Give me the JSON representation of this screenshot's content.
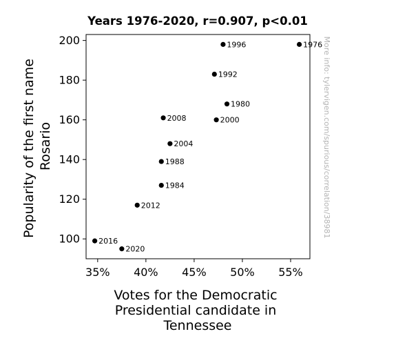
{
  "chart_data": {
    "type": "scatter",
    "title": "Years 1976-2020, r=0.907, p<0.01",
    "xlabel_lines": [
      "Votes for the Democratic",
      "Presidential candidate in",
      "Tennessee"
    ],
    "ylabel_lines": [
      "Popularity of the first name",
      "Rosario"
    ],
    "xlim": [
      33.8,
      57.0
    ],
    "ylim": [
      90,
      203
    ],
    "x_unit": "%",
    "x_ticks": [
      35,
      40,
      45,
      50,
      55
    ],
    "x_tick_labels": [
      "35%",
      "40%",
      "45%",
      "50%",
      "55%"
    ],
    "y_ticks": [
      100,
      120,
      140,
      160,
      180,
      200
    ],
    "y_tick_labels": [
      "100",
      "120",
      "140",
      "160",
      "180",
      "200"
    ],
    "grid": false,
    "watermark": "More info: tylervigen.com/spurious/correlation/38981",
    "marker_color": "#000000",
    "points": [
      {
        "label": "1976",
        "x": 55.9,
        "y": 198
      },
      {
        "label": "1980",
        "x": 48.4,
        "y": 168
      },
      {
        "label": "1984",
        "x": 41.6,
        "y": 127
      },
      {
        "label": "1988",
        "x": 41.6,
        "y": 139
      },
      {
        "label": "1992",
        "x": 47.1,
        "y": 183
      },
      {
        "label": "1996",
        "x": 48.0,
        "y": 198
      },
      {
        "label": "2000",
        "x": 47.3,
        "y": 160
      },
      {
        "label": "2004",
        "x": 42.5,
        "y": 148
      },
      {
        "label": "2008",
        "x": 41.8,
        "y": 161
      },
      {
        "label": "2012",
        "x": 39.1,
        "y": 117
      },
      {
        "label": "2016",
        "x": 34.7,
        "y": 99
      },
      {
        "label": "2020",
        "x": 37.5,
        "y": 95
      }
    ]
  }
}
